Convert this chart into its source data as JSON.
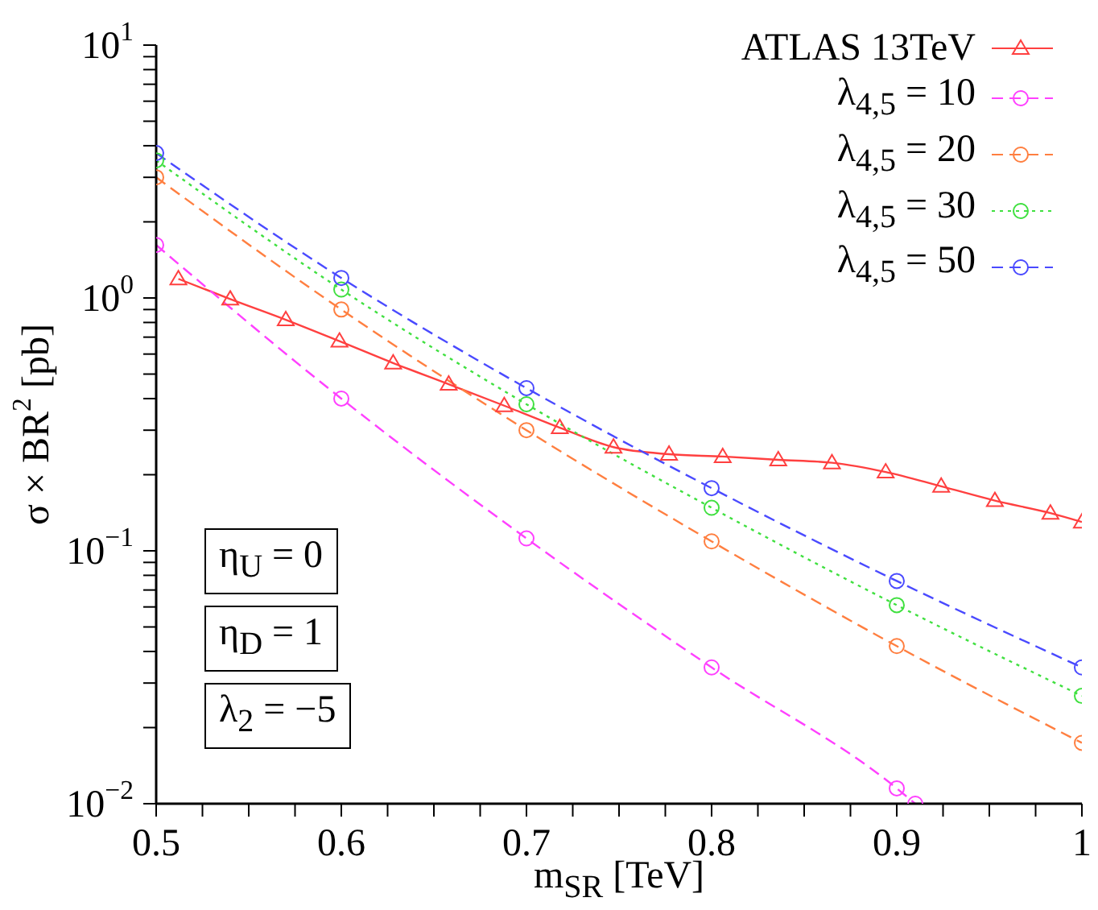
{
  "chart_data": {
    "type": "line",
    "xlabel": "m$_{SR}$ [TeV]",
    "ylabel": "σ × BR$^{2}$ [pb]",
    "log": "y",
    "xlim": [
      0.5,
      1
    ],
    "ylim": [
      0.01,
      10
    ],
    "xticks": [
      0.5,
      {
        "value": 0.525,
        "label": null
      },
      {
        "value": 0.55,
        "label": null
      },
      {
        "value": 0.575,
        "label": null
      },
      0.6,
      {
        "value": 0.625,
        "label": null
      },
      {
        "value": 0.65,
        "label": null
      },
      {
        "value": 0.675,
        "label": null
      },
      0.7,
      {
        "value": 0.725,
        "label": null
      },
      {
        "value": 0.75,
        "label": null
      },
      {
        "value": 0.775,
        "label": null
      },
      0.8,
      {
        "value": 0.825,
        "label": null
      },
      {
        "value": 0.85,
        "label": null
      },
      {
        "value": 0.875,
        "label": null
      },
      0.9,
      {
        "value": 0.925,
        "label": null
      },
      {
        "value": 0.95,
        "label": null
      },
      {
        "value": 0.975,
        "label": null
      },
      1
    ],
    "yticks": [
      {
        "value": 0.01,
        "label": "10$^{−2}$"
      },
      {
        "value": 0.02,
        "label": null
      },
      {
        "value": 0.03,
        "label": null
      },
      {
        "value": 0.04,
        "label": null
      },
      {
        "value": 0.05,
        "label": null
      },
      {
        "value": 0.06,
        "label": null
      },
      {
        "value": 0.07,
        "label": null
      },
      {
        "value": 0.08,
        "label": null
      },
      {
        "value": 0.09,
        "label": null
      },
      {
        "value": 0.1,
        "label": "10$^{−1}$"
      },
      {
        "value": 0.2,
        "label": null
      },
      {
        "value": 0.3,
        "label": null
      },
      {
        "value": 0.4,
        "label": null
      },
      {
        "value": 0.5,
        "label": null
      },
      {
        "value": 0.6,
        "label": null
      },
      {
        "value": 0.7,
        "label": null
      },
      {
        "value": 0.8,
        "label": null
      },
      {
        "value": 0.9,
        "label": null
      },
      {
        "value": 1,
        "label": "10$^{0}$"
      },
      {
        "value": 2,
        "label": null
      },
      {
        "value": 3,
        "label": null
      },
      {
        "value": 4,
        "label": null
      },
      {
        "value": 5,
        "label": null
      },
      {
        "value": 6,
        "label": null
      },
      {
        "value": 7,
        "label": null
      },
      {
        "value": 8,
        "label": null
      },
      {
        "value": 9,
        "label": null
      },
      {
        "value": 10,
        "label": "10$^{1}$"
      }
    ],
    "grid": false,
    "legend": "top right",
    "annotations": [
      "η$_{U}$ = 0",
      "η$_{D}$ = 1",
      "λ$_{2}$ = −5"
    ],
    "series": [
      {
        "name": "ATLAS 13TeV",
        "color": "#ff4040",
        "marker": "triangle",
        "line_style": "solid",
        "x": [
          0.512,
          0.54,
          0.57,
          0.599,
          0.628,
          0.658,
          0.688,
          0.718,
          0.747,
          0.777,
          0.806,
          0.836,
          0.865,
          0.894,
          0.924,
          0.953,
          0.983,
          1.0
        ],
        "values": [
          1.19,
          0.99,
          0.82,
          0.675,
          0.553,
          0.456,
          0.375,
          0.307,
          0.257,
          0.241,
          0.236,
          0.229,
          0.223,
          0.205,
          0.18,
          0.158,
          0.141,
          0.13
        ]
      },
      {
        "name": "λ$_{4,5}$ = 10",
        "color": "#ff40ff",
        "marker": "circle",
        "line_style": "dashed",
        "x": [
          0.5,
          0.6,
          0.7,
          0.8,
          0.9,
          0.91
        ],
        "values": [
          1.62,
          0.4,
          0.112,
          0.0346,
          0.0115,
          0.01
        ]
      },
      {
        "name": "λ$_{4,5}$ = 20",
        "color": "#ff7f40",
        "marker": "circle",
        "line_style": "dashed",
        "x": [
          0.5,
          0.6,
          0.7,
          0.8,
          0.9,
          1.0
        ],
        "values": [
          3.0,
          0.9,
          0.3,
          0.109,
          0.042,
          0.0174
        ]
      },
      {
        "name": "λ$_{4,5}$ = 30",
        "color": "#40e040",
        "marker": "circle",
        "line_style": "dotted",
        "x": [
          0.5,
          0.6,
          0.7,
          0.8,
          0.9,
          1.0
        ],
        "values": [
          3.5,
          1.08,
          0.38,
          0.148,
          0.061,
          0.0267
        ]
      },
      {
        "name": "λ$_{4,5}$ = 50",
        "color": "#4a4aff",
        "marker": "circle",
        "line_style": "dashed",
        "x": [
          0.5,
          0.6,
          0.7,
          0.8,
          0.9,
          1.0
        ],
        "values": [
          3.74,
          1.2,
          0.44,
          0.177,
          0.076,
          0.0346
        ]
      }
    ]
  }
}
